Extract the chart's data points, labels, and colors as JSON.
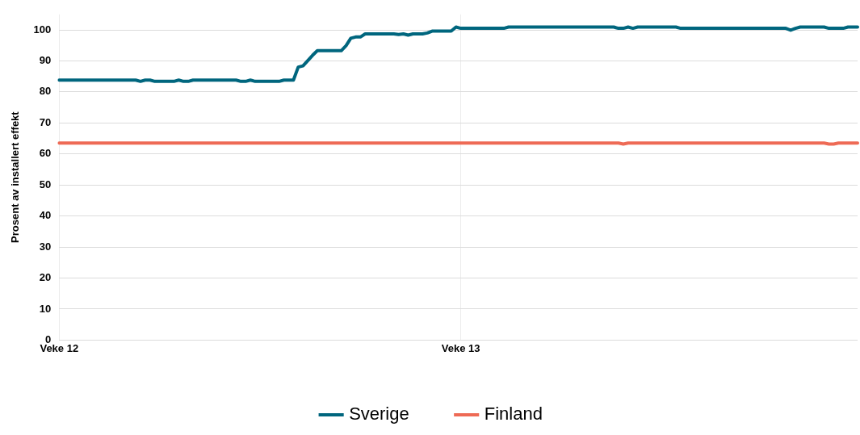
{
  "chart_data": {
    "type": "line",
    "ylabel": "Prosent av installert effekt",
    "categories": [
      "Veke 12",
      null,
      null,
      null,
      null,
      null,
      null,
      null,
      null,
      null,
      null,
      null,
      null,
      null,
      null,
      null,
      null,
      null,
      null,
      null,
      null,
      null,
      null,
      null,
      null,
      null,
      null,
      null,
      null,
      null,
      null,
      null,
      null,
      null,
      null,
      null,
      null,
      null,
      null,
      null,
      null,
      null,
      null,
      null,
      null,
      null,
      null,
      null,
      null,
      null,
      null,
      null,
      null,
      null,
      null,
      null,
      null,
      null,
      null,
      null,
      null,
      null,
      null,
      null,
      null,
      null,
      null,
      null,
      null,
      null,
      null,
      null,
      null,
      null,
      null,
      null,
      null,
      null,
      null,
      null,
      null,
      null,
      null,
      null,
      "Veke 13",
      null,
      null,
      null,
      null,
      null,
      null,
      null,
      null,
      null,
      null,
      null,
      null,
      null,
      null,
      null,
      null,
      null,
      null,
      null,
      null,
      null,
      null,
      null,
      null,
      null,
      null,
      null,
      null,
      null,
      null,
      null,
      null,
      null,
      null,
      null,
      null,
      null,
      null,
      null,
      null,
      null,
      null,
      null,
      null,
      null,
      null,
      null,
      null,
      null,
      null,
      null,
      null,
      null,
      null,
      null,
      null,
      null,
      null,
      null,
      null,
      null,
      null,
      null,
      null,
      null,
      null,
      null,
      null,
      null,
      null,
      null,
      null,
      null,
      null,
      null,
      null,
      null,
      null,
      null,
      null,
      null,
      null,
      null
    ],
    "ylim": [
      0,
      105
    ],
    "yticks": [
      0,
      10,
      20,
      30,
      40,
      50,
      60,
      70,
      80,
      90,
      100
    ],
    "grid": true,
    "legend": "bottom",
    "marker": "none",
    "line_style": "solid",
    "series": [
      {
        "name": "Sverige",
        "color": "#00667e",
        "values": [
          83.8,
          83.8,
          83.8,
          83.8,
          83.8,
          83.8,
          83.8,
          83.8,
          83.8,
          83.8,
          83.8,
          83.8,
          83.8,
          83.8,
          83.8,
          83.8,
          83.8,
          83.4,
          83.8,
          83.8,
          83.4,
          83.4,
          83.4,
          83.4,
          83.4,
          83.8,
          83.4,
          83.4,
          83.8,
          83.8,
          83.8,
          83.8,
          83.8,
          83.8,
          83.8,
          83.8,
          83.8,
          83.8,
          83.4,
          83.4,
          83.8,
          83.4,
          83.4,
          83.4,
          83.4,
          83.4,
          83.4,
          83.8,
          83.8,
          83.8,
          88.0,
          88.4,
          90.1,
          91.8,
          93.3,
          93.3,
          93.3,
          93.3,
          93.3,
          93.3,
          94.9,
          97.3,
          97.7,
          97.7,
          98.7,
          98.7,
          98.7,
          98.7,
          98.7,
          98.7,
          98.7,
          98.5,
          98.7,
          98.3,
          98.7,
          98.7,
          98.7,
          99.0,
          99.6,
          99.6,
          99.6,
          99.6,
          99.6,
          100.9,
          100.5,
          100.5,
          100.5,
          100.5,
          100.5,
          100.5,
          100.5,
          100.5,
          100.5,
          100.5,
          100.9,
          100.9,
          100.9,
          100.9,
          100.9,
          100.9,
          100.9,
          100.9,
          100.9,
          100.9,
          100.9,
          100.9,
          100.9,
          100.9,
          100.9,
          100.9,
          100.9,
          100.9,
          100.9,
          100.9,
          100.9,
          100.9,
          100.9,
          100.5,
          100.5,
          100.9,
          100.5,
          100.9,
          100.9,
          100.9,
          100.9,
          100.9,
          100.9,
          100.9,
          100.9,
          100.9,
          100.5,
          100.5,
          100.5,
          100.5,
          100.5,
          100.5,
          100.5,
          100.5,
          100.5,
          100.5,
          100.5,
          100.5,
          100.5,
          100.5,
          100.5,
          100.5,
          100.5,
          100.5,
          100.5,
          100.5,
          100.5,
          100.5,
          100.5,
          99.9,
          100.5,
          100.9,
          100.9,
          100.9,
          100.9,
          100.9,
          100.9,
          100.5,
          100.5,
          100.5,
          100.5,
          100.9,
          100.9,
          100.9
        ]
      },
      {
        "name": "Finland",
        "color": "#ee6a55",
        "values": [
          63.5,
          63.5,
          63.5,
          63.5,
          63.5,
          63.5,
          63.5,
          63.5,
          63.5,
          63.5,
          63.5,
          63.5,
          63.5,
          63.5,
          63.5,
          63.5,
          63.5,
          63.5,
          63.5,
          63.5,
          63.5,
          63.5,
          63.5,
          63.5,
          63.5,
          63.5,
          63.5,
          63.5,
          63.5,
          63.5,
          63.5,
          63.5,
          63.5,
          63.5,
          63.5,
          63.5,
          63.5,
          63.5,
          63.5,
          63.5,
          63.5,
          63.5,
          63.5,
          63.5,
          63.5,
          63.5,
          63.5,
          63.5,
          63.5,
          63.5,
          63.5,
          63.5,
          63.5,
          63.5,
          63.5,
          63.5,
          63.5,
          63.5,
          63.5,
          63.5,
          63.5,
          63.5,
          63.5,
          63.5,
          63.5,
          63.5,
          63.5,
          63.5,
          63.5,
          63.5,
          63.5,
          63.5,
          63.5,
          63.5,
          63.5,
          63.5,
          63.5,
          63.5,
          63.5,
          63.5,
          63.5,
          63.5,
          63.5,
          63.5,
          63.5,
          63.5,
          63.5,
          63.5,
          63.5,
          63.5,
          63.5,
          63.5,
          63.5,
          63.5,
          63.5,
          63.5,
          63.5,
          63.5,
          63.5,
          63.5,
          63.5,
          63.5,
          63.5,
          63.5,
          63.5,
          63.5,
          63.5,
          63.5,
          63.5,
          63.5,
          63.5,
          63.5,
          63.5,
          63.5,
          63.5,
          63.5,
          63.5,
          63.5,
          63.2,
          63.5,
          63.5,
          63.5,
          63.5,
          63.5,
          63.5,
          63.5,
          63.5,
          63.5,
          63.5,
          63.5,
          63.5,
          63.5,
          63.5,
          63.5,
          63.5,
          63.5,
          63.5,
          63.5,
          63.5,
          63.5,
          63.5,
          63.5,
          63.5,
          63.5,
          63.5,
          63.5,
          63.5,
          63.5,
          63.5,
          63.5,
          63.5,
          63.5,
          63.5,
          63.5,
          63.5,
          63.5,
          63.5,
          63.5,
          63.5,
          63.5,
          63.5,
          63.2,
          63.2,
          63.5,
          63.5,
          63.5,
          63.5,
          63.5
        ]
      }
    ]
  }
}
